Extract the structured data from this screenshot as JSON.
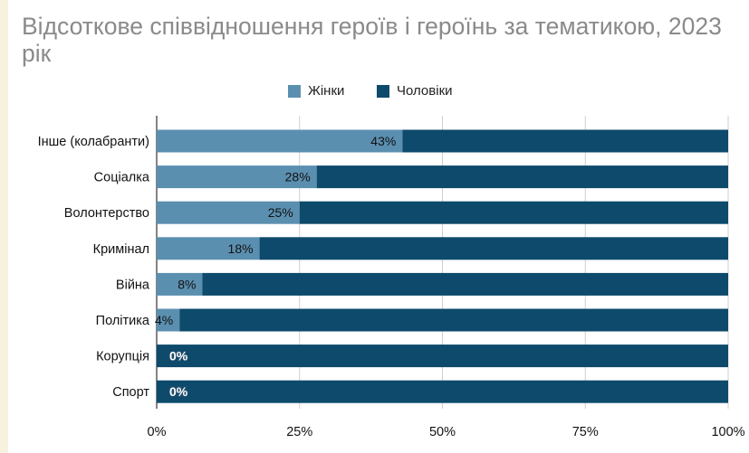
{
  "title": "Відсоткове співвідношення героїв і героїнь за тематикою, 2023 рік",
  "chart_data": {
    "type": "bar",
    "orientation": "horizontal",
    "stacked": true,
    "percent_stacked": true,
    "title": "Відсоткове співвідношення героїв і героїнь за тематикою, 2023 рік",
    "categories": [
      "Інше (колабранти)",
      "Соціалка",
      "Волонтерство",
      "Кримінал",
      "Війна",
      "Політика",
      "Корупція",
      "Спорт"
    ],
    "series": [
      {
        "name": "Жінки",
        "color": "#5b8fb0",
        "values": [
          43,
          28,
          25,
          18,
          8,
          4,
          0,
          0
        ]
      },
      {
        "name": "Чоловіки",
        "color": "#0d4a6b",
        "values": [
          57,
          72,
          75,
          82,
          92,
          96,
          100,
          100
        ]
      }
    ],
    "data_labels": [
      "43%",
      "28%",
      "25%",
      "18%",
      "8%",
      "4%",
      "0%",
      "0%"
    ],
    "xlim": [
      0,
      100
    ],
    "x_ticks": [
      0,
      25,
      50,
      75,
      100
    ],
    "x_tick_labels": [
      "0%",
      "25%",
      "50%",
      "75%",
      "100%"
    ],
    "grid": true,
    "legend_position": "top-center"
  }
}
